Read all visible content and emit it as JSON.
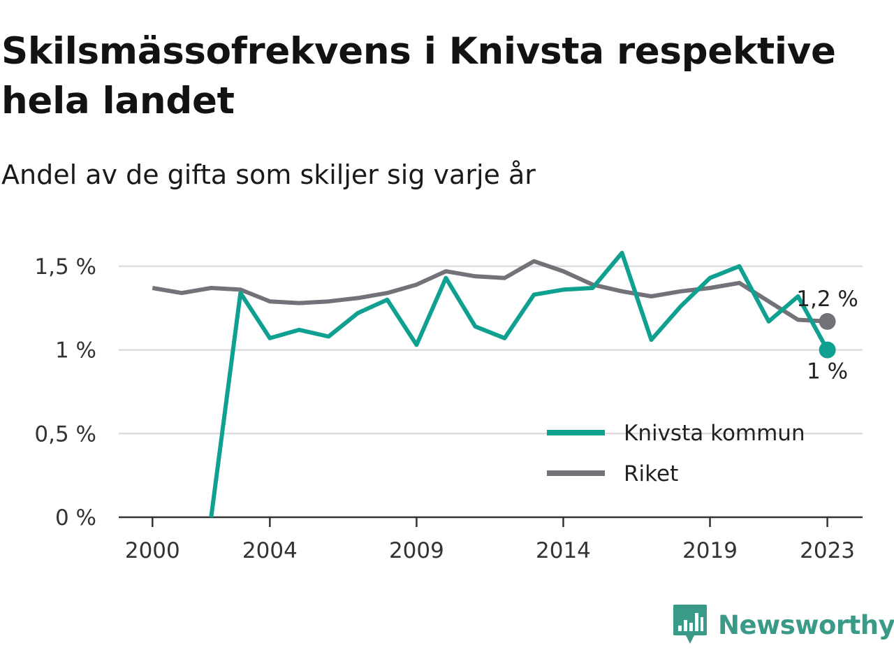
{
  "header": {
    "title": "Skilsmässofrekvens i Knivsta respektive hela landet",
    "subtitle": "Andel av de gifta som skiljer sig varje år"
  },
  "brand": {
    "name": "Newsworthy",
    "icon": "newsworthy-logo-icon",
    "color": "#3a9a88"
  },
  "chart_data": {
    "type": "line",
    "x": [
      2000,
      2001,
      2002,
      2003,
      2004,
      2005,
      2006,
      2007,
      2008,
      2009,
      2010,
      2011,
      2012,
      2013,
      2014,
      2015,
      2016,
      2017,
      2018,
      2019,
      2020,
      2021,
      2022,
      2023
    ],
    "x_ticks": [
      2000,
      2004,
      2009,
      2014,
      2019,
      2023
    ],
    "x_tick_labels": [
      "2000",
      "2004",
      "2009",
      "2014",
      "2019",
      "2023"
    ],
    "xlim": [
      1998.85,
      2024.2
    ],
    "ylim": [
      0,
      1.65
    ],
    "y_ticks": [
      0,
      0.5,
      1,
      1.5
    ],
    "y_tick_labels": [
      "0 %",
      "0,5 %",
      "1 %",
      "1,5 %"
    ],
    "grid": true,
    "legend_position": "bottom-right",
    "series": [
      {
        "name": "Knivsta kommun",
        "color": "#10a090",
        "values": [
          null,
          null,
          0,
          1.34,
          1.07,
          1.12,
          1.08,
          1.22,
          1.3,
          1.03,
          1.43,
          1.14,
          1.07,
          1.33,
          1.36,
          1.37,
          1.58,
          1.06,
          1.26,
          1.43,
          1.5,
          1.17,
          1.32,
          1.0
        ],
        "end_label": "1 %"
      },
      {
        "name": "Riket",
        "color": "#737278",
        "values": [
          1.37,
          1.34,
          1.37,
          1.36,
          1.29,
          1.28,
          1.29,
          1.31,
          1.34,
          1.39,
          1.47,
          1.44,
          1.43,
          1.53,
          1.47,
          1.39,
          1.35,
          1.32,
          1.35,
          1.37,
          1.4,
          1.29,
          1.18,
          1.17
        ],
        "end_label": "1,2 %"
      }
    ]
  }
}
